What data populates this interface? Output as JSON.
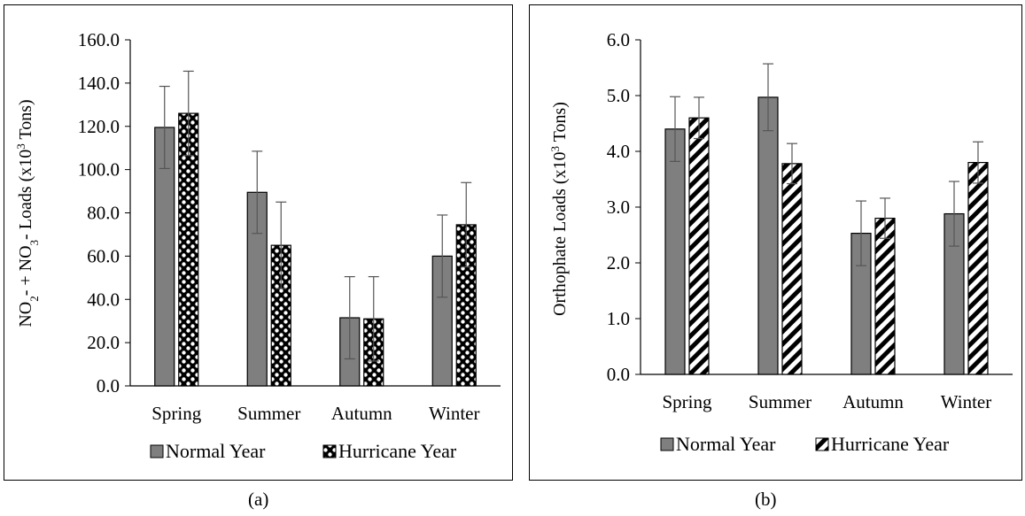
{
  "chart_data": [
    {
      "type": "bar",
      "panel_label": "(a)",
      "ylabel": "NO₂⁻ + NO₃⁻ Loads (x10³ Tons)",
      "ylabel_parts": {
        "p1": "NO",
        "s1": "2",
        "p2": "- + NO",
        "s2": "3",
        "p3": "- Loads (x10",
        "s3": "3",
        "p4": " Tons)"
      },
      "categories": [
        "Spring",
        "Summer",
        "Autumn",
        "Winter"
      ],
      "ylim": [
        0,
        160
      ],
      "yticks": [
        "0.0",
        "20.0",
        "40.0",
        "60.0",
        "80.0",
        "100.0",
        "120.0",
        "140.0",
        "160.0"
      ],
      "grid": false,
      "legend_position": "bottom",
      "series": [
        {
          "name": "Normal Year",
          "values": [
            119.5,
            89.5,
            31.5,
            60.0
          ],
          "errors": [
            19,
            19,
            19,
            19
          ],
          "color": "#7f7f7f",
          "pattern": "solid"
        },
        {
          "name": "Hurricane Year",
          "values": [
            126.0,
            65.0,
            31.0,
            74.5
          ],
          "errors": [
            19.5,
            20,
            19.5,
            19.5
          ],
          "color": "#000000",
          "pattern": "checker"
        }
      ]
    },
    {
      "type": "bar",
      "panel_label": "(b)",
      "ylabel": "Orthophate Loads (x10³ Tons)",
      "ylabel_parts": {
        "p1": "Orthophate Loads (x10",
        "s1": "3",
        "p2": " Tons)"
      },
      "categories": [
        "Spring",
        "Summer",
        "Autumn",
        "Winter"
      ],
      "ylim": [
        0,
        6
      ],
      "yticks": [
        "0.0",
        "1.0",
        "2.0",
        "3.0",
        "4.0",
        "5.0",
        "6.0"
      ],
      "grid": false,
      "legend_position": "bottom",
      "series": [
        {
          "name": "Normal Year",
          "values": [
            4.4,
            4.97,
            2.53,
            2.88
          ],
          "errors": [
            0.58,
            0.6,
            0.58,
            0.58
          ],
          "color": "#7f7f7f",
          "pattern": "solid"
        },
        {
          "name": "Hurricane Year",
          "values": [
            4.6,
            3.78,
            2.8,
            3.8
          ],
          "errors": [
            0.37,
            0.36,
            0.36,
            0.37
          ],
          "color": "#000000",
          "pattern": "diagonal"
        }
      ]
    }
  ]
}
